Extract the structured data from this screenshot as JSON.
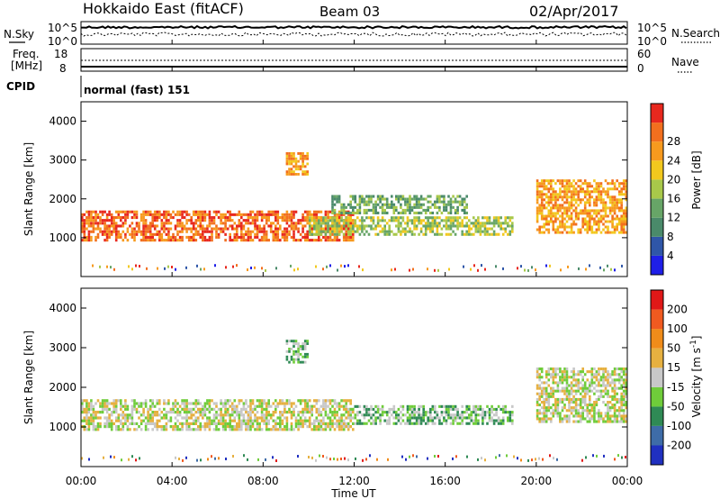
{
  "header": {
    "station": "Hokkaido East (fitACF)",
    "beam": "Beam 03",
    "date": "02/Apr/2017"
  },
  "top_panels": {
    "nsky_label": "N.Sky",
    "nsky_ticks": [
      "10^5",
      "10^0"
    ],
    "nsearch_label": "N.Search",
    "nsearch_ticks": [
      "10^5",
      "10^0"
    ],
    "freq_label_1": "Freq.",
    "freq_label_2": "[MHz]",
    "freq_ticks": [
      "18",
      "8"
    ],
    "nave_label": "Nave",
    "nave_ticks": [
      "60",
      "0"
    ],
    "cpid_label": "CPID",
    "cpid_value": "normal (fast) 151"
  },
  "chart_data": [
    {
      "type": "heatmap",
      "name": "power",
      "ylabel": "Slant Range [km]",
      "yticks": [
        "1000",
        "2000",
        "3000",
        "4000"
      ],
      "ylim": [
        0,
        4500
      ],
      "xlim": [
        0,
        24
      ],
      "colorbar_label": "Power [dB]",
      "colorbar_ticks": [
        "4",
        "8",
        "12",
        "16",
        "20",
        "24",
        "28"
      ],
      "colors": [
        "#1f1fe8",
        "#2f56a8",
        "#4a8a6a",
        "#67a567",
        "#a8c84a",
        "#f2c81e",
        "#f79a1e",
        "#f26f1e",
        "#e8281e"
      ],
      "regions": [
        {
          "t0": 0.0,
          "t1": 12.0,
          "r0": 900,
          "r1": 1700,
          "level": 7
        },
        {
          "t0": 9.0,
          "t1": 10.0,
          "r0": 2600,
          "r1": 3200,
          "level": 6
        },
        {
          "t0": 10.0,
          "t1": 19.0,
          "r0": 1050,
          "r1": 1550,
          "level": 4
        },
        {
          "t0": 11.0,
          "t1": 17.0,
          "r0": 1600,
          "r1": 2100,
          "level": 3
        },
        {
          "t0": 20.0,
          "t1": 24.0,
          "r0": 1100,
          "r1": 2500,
          "level": 6
        }
      ]
    },
    {
      "type": "heatmap",
      "name": "velocity",
      "ylabel": "Slant Range [km]",
      "yticks": [
        "1000",
        "2000",
        "3000",
        "4000"
      ],
      "ylim": [
        0,
        4500
      ],
      "xlim": [
        0,
        24
      ],
      "xlabel": "Time UT",
      "xticks": [
        "00:00",
        "04:00",
        "08:00",
        "12:00",
        "16:00",
        "20:00",
        "00:00"
      ],
      "colorbar_label": "Velocity [m s",
      "colorbar_label_sup": "-1",
      "colorbar_label_end": "]",
      "colorbar_ticks": [
        "200",
        "100",
        "50",
        "15",
        "-15",
        "-50",
        "-100",
        "-200"
      ],
      "colors": [
        "#2030c0",
        "#3e6ca8",
        "#2f8a55",
        "#6fcc3a",
        "#c8c8c8",
        "#e6b040",
        "#f08c1a",
        "#f05a20",
        "#e01818"
      ],
      "regions": [
        {
          "t0": 0.0,
          "t1": 12.0,
          "r0": 900,
          "r1": 1700,
          "level": 4
        },
        {
          "t0": 9.0,
          "t1": 10.0,
          "r0": 2600,
          "r1": 3200,
          "level": 3
        },
        {
          "t0": 12.0,
          "t1": 19.0,
          "r0": 1050,
          "r1": 1550,
          "level": 3
        },
        {
          "t0": 20.0,
          "t1": 24.0,
          "r0": 1100,
          "r1": 2500,
          "level": 4
        }
      ]
    }
  ]
}
